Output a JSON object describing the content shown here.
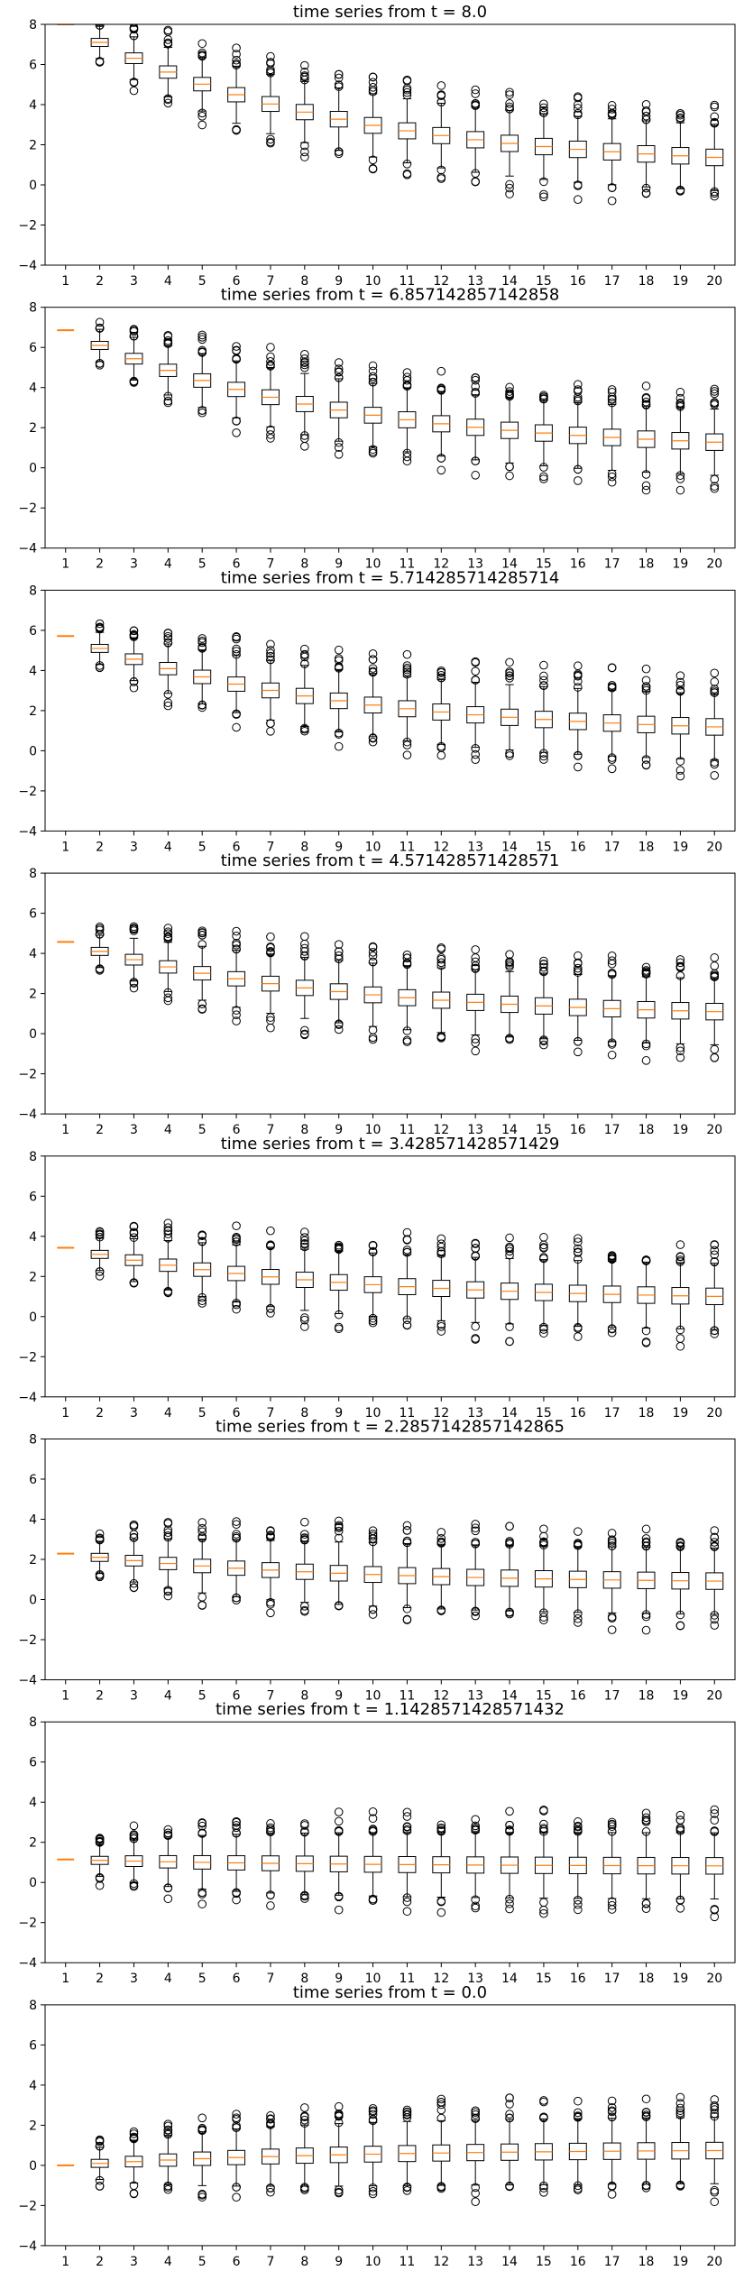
{
  "chart_data": [
    {
      "type": "boxplot",
      "title": "time series from t = 8.0",
      "start": 8.0,
      "x": [
        1,
        2,
        3,
        4,
        5,
        6,
        7,
        8,
        9,
        10,
        11,
        12,
        13,
        14,
        15,
        16,
        17,
        18,
        19,
        20
      ],
      "ylim": [
        -4,
        8
      ],
      "yticks": [
        -4,
        -2,
        0,
        2,
        4,
        6,
        8
      ]
    },
    {
      "type": "boxplot",
      "title": "time series from t = 6.857142857142858",
      "start": 6.857142857142858,
      "x": [
        1,
        2,
        3,
        4,
        5,
        6,
        7,
        8,
        9,
        10,
        11,
        12,
        13,
        14,
        15,
        16,
        17,
        18,
        19,
        20
      ],
      "ylim": [
        -4,
        8
      ],
      "yticks": [
        -4,
        -2,
        0,
        2,
        4,
        6,
        8
      ]
    },
    {
      "type": "boxplot",
      "title": "time series from t = 5.714285714285714",
      "start": 5.714285714285714,
      "x": [
        1,
        2,
        3,
        4,
        5,
        6,
        7,
        8,
        9,
        10,
        11,
        12,
        13,
        14,
        15,
        16,
        17,
        18,
        19,
        20
      ],
      "ylim": [
        -4,
        8
      ],
      "yticks": [
        -4,
        -2,
        0,
        2,
        4,
        6,
        8
      ]
    },
    {
      "type": "boxplot",
      "title": "time series from t = 4.571428571428571",
      "start": 4.571428571428571,
      "x": [
        1,
        2,
        3,
        4,
        5,
        6,
        7,
        8,
        9,
        10,
        11,
        12,
        13,
        14,
        15,
        16,
        17,
        18,
        19,
        20
      ],
      "ylim": [
        -4,
        8
      ],
      "yticks": [
        -4,
        -2,
        0,
        2,
        4,
        6,
        8
      ]
    },
    {
      "type": "boxplot",
      "title": "time series from t = 3.428571428571429",
      "start": 3.428571428571429,
      "x": [
        1,
        2,
        3,
        4,
        5,
        6,
        7,
        8,
        9,
        10,
        11,
        12,
        13,
        14,
        15,
        16,
        17,
        18,
        19,
        20
      ],
      "ylim": [
        -4,
        8
      ],
      "yticks": [
        -4,
        -2,
        0,
        2,
        4,
        6,
        8
      ]
    },
    {
      "type": "boxplot",
      "title": "time series from t = 2.2857142857142865",
      "start": 2.2857142857142865,
      "x": [
        1,
        2,
        3,
        4,
        5,
        6,
        7,
        8,
        9,
        10,
        11,
        12,
        13,
        14,
        15,
        16,
        17,
        18,
        19,
        20
      ],
      "ylim": [
        -4,
        8
      ],
      "yticks": [
        -4,
        -2,
        0,
        2,
        4,
        6,
        8
      ]
    },
    {
      "type": "boxplot",
      "title": "time series from t = 1.1428571428571432",
      "start": 1.1428571428571432,
      "x": [
        1,
        2,
        3,
        4,
        5,
        6,
        7,
        8,
        9,
        10,
        11,
        12,
        13,
        14,
        15,
        16,
        17,
        18,
        19,
        20
      ],
      "ylim": [
        -4,
        8
      ],
      "yticks": [
        -4,
        -2,
        0,
        2,
        4,
        6,
        8
      ]
    },
    {
      "type": "boxplot",
      "title": "time series from t = 0.0",
      "start": 0.0,
      "x": [
        1,
        2,
        3,
        4,
        5,
        6,
        7,
        8,
        9,
        10,
        11,
        12,
        13,
        14,
        15,
        16,
        17,
        18,
        19,
        20
      ],
      "ylim": [
        -4,
        8
      ],
      "yticks": [
        -4,
        -2,
        0,
        2,
        4,
        6,
        8
      ]
    }
  ],
  "colors": {
    "box": "#000000",
    "median": "#ff7f0e",
    "background": "#ffffff"
  }
}
